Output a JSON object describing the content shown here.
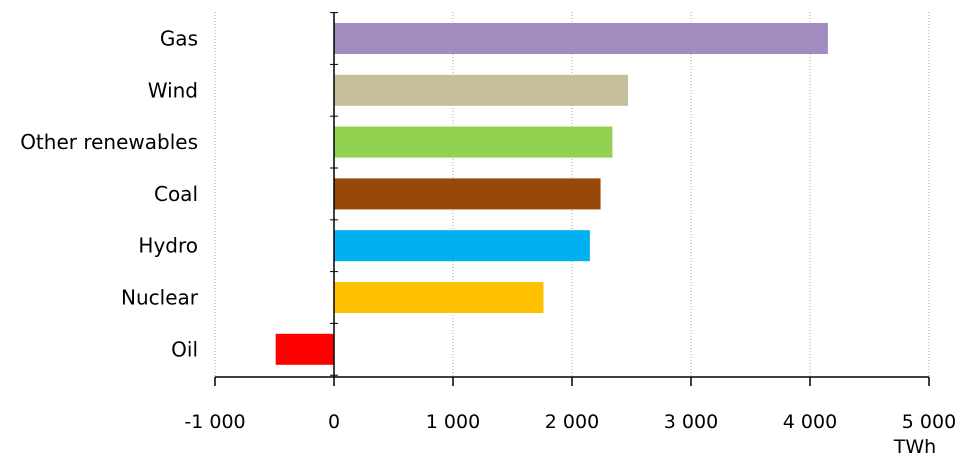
{
  "chart_data": {
    "type": "bar",
    "orientation": "horizontal",
    "categories": [
      "Gas",
      "Wind",
      "Other renewables",
      "Coal",
      "Hydro",
      "Nuclear",
      "Oil"
    ],
    "values": [
      4150,
      2470,
      2340,
      2240,
      2150,
      1760,
      -490
    ],
    "colors": [
      "#a28bbf",
      "#c5be9b",
      "#92d050",
      "#974806",
      "#00b0f0",
      "#ffc000",
      "#ff0000"
    ],
    "xlim": [
      -1000,
      5000
    ],
    "xticks": [
      -1000,
      0,
      1000,
      2000,
      3000,
      4000,
      5000
    ],
    "xtick_labels": [
      "-1 000",
      "0",
      "1 000",
      "2 000",
      "3 000",
      "4 000",
      "5 000"
    ],
    "unit": "TWh",
    "grid": "vertical dotted"
  }
}
